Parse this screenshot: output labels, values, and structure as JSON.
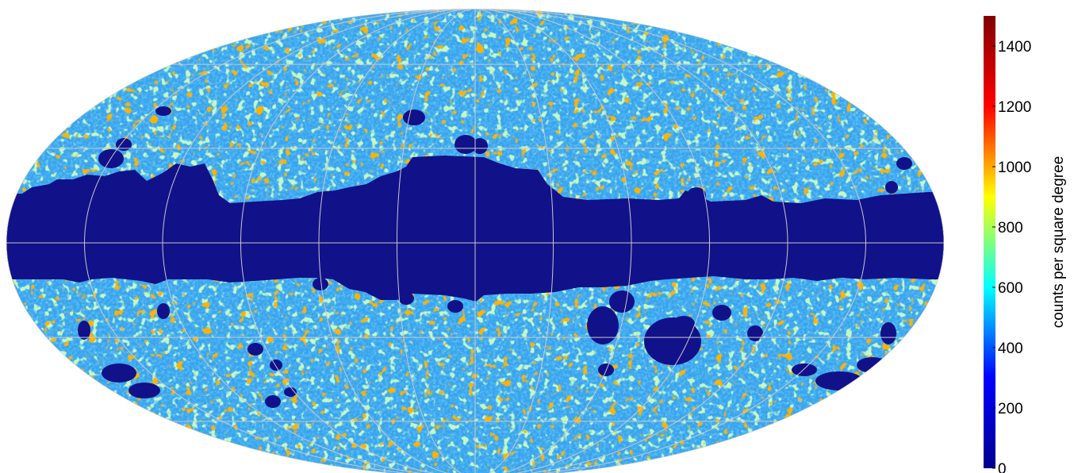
{
  "map": {
    "projection": "mollweide",
    "graticule": {
      "meridian_step_deg": 30,
      "parallel_step_deg": 30,
      "color": "#c8c8c8"
    },
    "masked_color": "#11118a",
    "field_base_color": "#3aa2ec"
  },
  "colorbar": {
    "label": "counts per square degree",
    "min": 0,
    "max": 1500,
    "ticks": [
      {
        "value": 0,
        "label": "0"
      },
      {
        "value": 200,
        "label": "200"
      },
      {
        "value": 400,
        "label": "400"
      },
      {
        "value": 600,
        "label": "600"
      },
      {
        "value": 800,
        "label": "800"
      },
      {
        "value": 1000,
        "label": "1000"
      },
      {
        "value": 1200,
        "label": "1200"
      },
      {
        "value": 1400,
        "label": "1400"
      }
    ],
    "colormap": "jet",
    "colormap_stops": [
      "#00008f",
      "#0000ff",
      "#00ffff",
      "#ffff00",
      "#ff0000",
      "#800000"
    ]
  }
}
